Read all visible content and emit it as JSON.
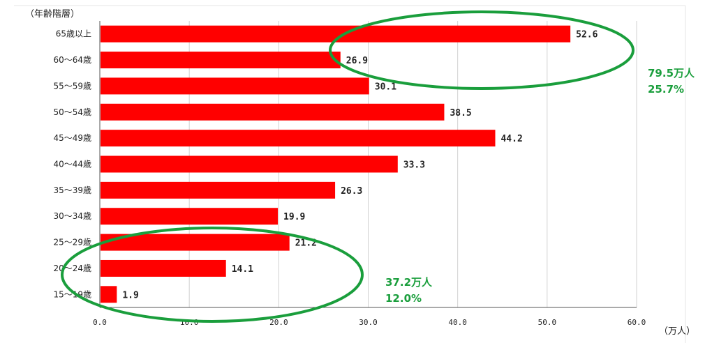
{
  "chart_data": {
    "type": "bar",
    "orientation": "horizontal",
    "categories": [
      "65歳以上",
      "60～64歳",
      "55～59歳",
      "50～54歳",
      "45～49歳",
      "40～44歳",
      "35～39歳",
      "30～34歳",
      "25～29歳",
      "20～24歳",
      "15～19歳"
    ],
    "values": [
      52.6,
      26.9,
      30.1,
      38.5,
      44.2,
      33.3,
      26.3,
      19.9,
      21.2,
      14.1,
      1.9
    ],
    "value_labels": [
      "52.6",
      "26.9",
      "30.1",
      "38.5",
      "44.2",
      "33.3",
      "26.3",
      "19.9",
      "21.2",
      "14.1",
      "1.9"
    ],
    "xlim": [
      0,
      60
    ],
    "xticks": [
      0,
      10,
      20,
      30,
      40,
      50,
      60
    ],
    "xtick_labels": [
      "0.0",
      "10.0",
      "20.0",
      "30.0",
      "40.0",
      "50.0",
      "60.0"
    ],
    "xlabel": "（万人）",
    "ylabel": "（年齢階層）",
    "grid": "vertical",
    "bar_color": "#ff0000",
    "annotations": [
      {
        "line1": "79.5万人",
        "line2": "25.7%",
        "color": "#1a9e3c"
      },
      {
        "line1": "37.2万人",
        "line2": "12.0%",
        "color": "#1a9e3c"
      }
    ]
  }
}
